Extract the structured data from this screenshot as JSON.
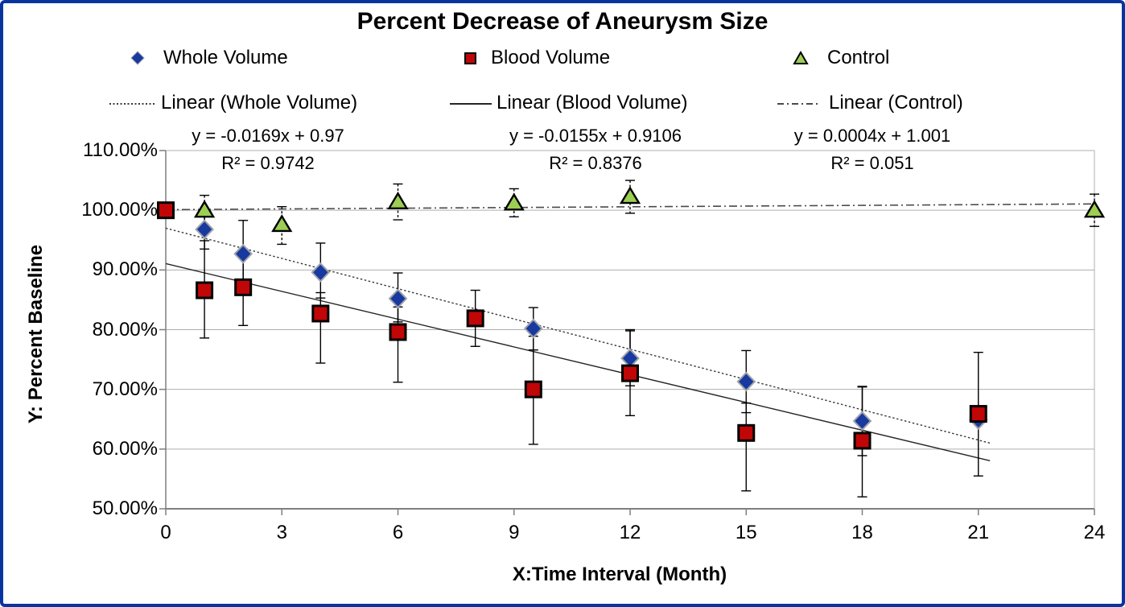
{
  "window": {
    "border_color": "#0834A0",
    "background": "#FFFFFF"
  },
  "title": "Percent Decrease of Aneurysm Size",
  "legend": {
    "series": [
      {
        "label": "Whole Volume",
        "marker": "diamond"
      },
      {
        "label": "Blood Volume",
        "marker": "square"
      },
      {
        "label": "Control",
        "marker": "triangle"
      }
    ],
    "trendlines": [
      {
        "label": "Linear (Whole Volume)",
        "line_style": "dotted"
      },
      {
        "label": "Linear (Blood Volume)",
        "line_style": "solid"
      },
      {
        "label": "Linear (Control)",
        "line_style": "dash-dot"
      }
    ]
  },
  "equations": [
    {
      "equation": "y = -0.0169x + 0.97",
      "r_squared": "R² = 0.9742"
    },
    {
      "equation": "y = -0.0155x + 0.9106",
      "r_squared": "R² = 0.8376"
    },
    {
      "equation": "y = 0.0004x + 1.001",
      "r_squared": "R² = 0.051"
    }
  ],
  "chart_data": {
    "type": "scatter",
    "title": "Percent Decrease of Aneurysm Size",
    "xlabel": "X:Time Interval (Month)",
    "ylabel": "Y: Percent Baseline",
    "xlim": [
      0,
      24
    ],
    "ylim_percent": [
      50,
      110
    ],
    "x_ticks": [
      0,
      3,
      6,
      9,
      12,
      15,
      18,
      21,
      24
    ],
    "y_tick_values": [
      110,
      100,
      90,
      80,
      70,
      60,
      50
    ],
    "y_tick_labels": [
      "110.00%",
      "100.00%",
      "90.00%",
      "80.00%",
      "70.00%",
      "60.00%",
      "50.00%"
    ],
    "grid": true,
    "legend_position": "top",
    "colors": {
      "gridline": "#AFAFAF",
      "axis": "#7F7F7F",
      "error_bar": "#000000",
      "text": "#000000"
    },
    "series": [
      {
        "name": "Whole Volume",
        "slug": "whole-volume",
        "marker": "diamond",
        "fill": "#18399F",
        "stroke": "#A0A3A9",
        "z": 1,
        "error_bar_style": "solid",
        "points": [
          {
            "x": 1,
            "y": 96.8,
            "eu": 3.3,
            "ed": 3.3
          },
          {
            "x": 2,
            "y": 92.7,
            "eu": 5.6,
            "ed": 4.5
          },
          {
            "x": 4,
            "y": 89.6,
            "eu": 4.9,
            "ed": 4.3
          },
          {
            "x": 6,
            "y": 85.2,
            "eu": 4.3,
            "ed": 3.9
          },
          {
            "x": 9.5,
            "y": 80.2,
            "eu": 3.5,
            "ed": 3.6
          },
          {
            "x": 12,
            "y": 75.2,
            "eu": 4.6,
            "ed": 4.6
          },
          {
            "x": 15,
            "y": 71.3,
            "eu": 5.2,
            "ed": 5.2
          },
          {
            "x": 18,
            "y": 64.7,
            "eu": 5.8,
            "ed": 5.8
          },
          {
            "x": 21,
            "y": 64.9,
            "eu": 0,
            "ed": 0
          }
        ]
      },
      {
        "name": "Blood Volume",
        "slug": "blood-volume",
        "marker": "square",
        "fill": "#C00606",
        "stroke": "#000000",
        "z": 2,
        "error_bar_style": "solid",
        "points": [
          {
            "x": 0,
            "y": 100.0,
            "eu": 0,
            "ed": 0
          },
          {
            "x": 1,
            "y": 86.6,
            "eu": 8.3,
            "ed": 8.0
          },
          {
            "x": 2,
            "y": 87.1,
            "eu": 6.4,
            "ed": 6.4
          },
          {
            "x": 4,
            "y": 82.7,
            "eu": 3.5,
            "ed": 8.3
          },
          {
            "x": 6,
            "y": 79.6,
            "eu": 4.2,
            "ed": 8.4
          },
          {
            "x": 8,
            "y": 81.9,
            "eu": 4.7,
            "ed": 4.7
          },
          {
            "x": 9.5,
            "y": 70.0,
            "eu": 8.9,
            "ed": 9.2
          },
          {
            "x": 12,
            "y": 72.7,
            "eu": 7.3,
            "ed": 7.1
          },
          {
            "x": 15,
            "y": 62.7,
            "eu": 5.0,
            "ed": 9.7
          },
          {
            "x": 18,
            "y": 61.4,
            "eu": 9.0,
            "ed": 9.4
          },
          {
            "x": 21,
            "y": 65.9,
            "eu": 10.3,
            "ed": 10.4
          }
        ]
      },
      {
        "name": "Control",
        "slug": "control",
        "marker": "triangle",
        "fill": "#9BCE53",
        "stroke": "#000000",
        "z": 0,
        "error_bar_style": "dashed",
        "points": [
          {
            "x": 1,
            "y": 100.0,
            "eu": 2.5,
            "ed": 2.5
          },
          {
            "x": 3,
            "y": 97.6,
            "eu": 3.0,
            "ed": 3.3
          },
          {
            "x": 6,
            "y": 101.4,
            "eu": 3.0,
            "ed": 3.0
          },
          {
            "x": 9,
            "y": 101.2,
            "eu": 2.4,
            "ed": 2.3
          },
          {
            "x": 12,
            "y": 102.3,
            "eu": 2.7,
            "ed": 2.8
          },
          {
            "x": 24,
            "y": 100.0,
            "eu": 2.7,
            "ed": 2.7
          }
        ]
      }
    ],
    "trendlines": [
      {
        "name": "Linear (Whole Volume)",
        "style": "dotted",
        "slope": -1.69,
        "intercept": 97.0,
        "x_start": 0,
        "x_end": 21.3,
        "color": "#3A3A3A",
        "width": 1.4,
        "r2": 0.9742
      },
      {
        "name": "Linear (Blood Volume)",
        "style": "solid",
        "slope": -1.55,
        "intercept": 91.06,
        "x_start": 0,
        "x_end": 21.3,
        "color": "#262626",
        "width": 1.4,
        "r2": 0.8376
      },
      {
        "name": "Linear (Control)",
        "style": "dash-dot",
        "slope": 0.04,
        "intercept": 100.1,
        "x_start": 0,
        "x_end": 24,
        "color": "#4A4A4A",
        "width": 1.6,
        "r2": 0.051
      }
    ]
  }
}
